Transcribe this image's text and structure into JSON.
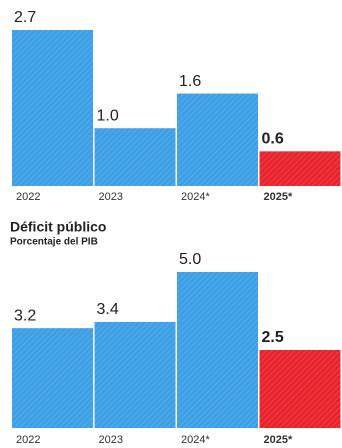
{
  "chart_data": [
    {
      "type": "bar",
      "categories": [
        "2022",
        "2023",
        "2024*",
        "2025*"
      ],
      "values": [
        2.7,
        1,
        1.6,
        0.6
      ],
      "value_labels": [
        "2.7",
        "1.0",
        "1.6",
        "0.6"
      ],
      "colors": [
        "#3d9fe6",
        "#3d9fe6",
        "#3d9fe6",
        "#e8232b"
      ]
    },
    {
      "type": "bar",
      "title": "Déficit público",
      "subtitle": "Porcentaje del PIB",
      "categories": [
        "2022",
        "2023",
        "2024*",
        "2025*"
      ],
      "values": [
        3.2,
        3.4,
        5,
        2.5
      ],
      "value_labels": [
        "3.2",
        "3.4",
        "5.0",
        "2.5"
      ],
      "colors": [
        "#3d9fe6",
        "#3d9fe6",
        "#3d9fe6",
        "#e8232b"
      ]
    }
  ]
}
